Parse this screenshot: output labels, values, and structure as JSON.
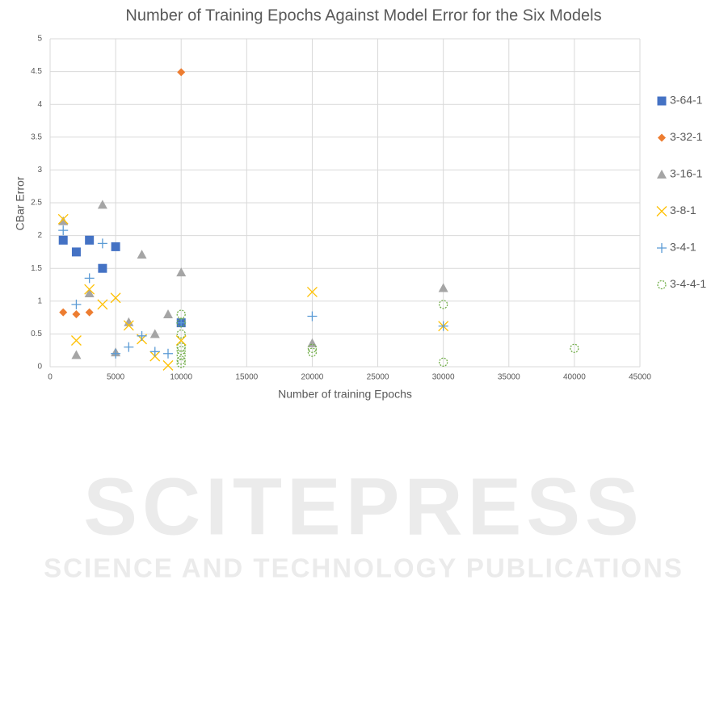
{
  "chart_data": {
    "type": "scatter",
    "title": "Number of Training Epochs Against Model Error for the Six Models",
    "x_label": "Number of training Epochs",
    "y_label": "CBar Error",
    "xlim": [
      0,
      45000
    ],
    "xticks": [
      0,
      5000,
      10000,
      15000,
      20000,
      25000,
      30000,
      35000,
      40000,
      45000
    ],
    "ylim": [
      0,
      5
    ],
    "yticks": [
      0,
      0.5,
      1,
      1.5,
      2,
      2.5,
      3,
      3.5,
      4,
      4.5,
      5
    ],
    "grid": true,
    "legend": "right",
    "series": [
      {
        "name": "3-64-1",
        "color": "#4472c4",
        "marker": "square",
        "x": [
          1000,
          2000,
          3000,
          4000,
          5000,
          10000
        ],
        "values": [
          1.93,
          1.75,
          1.93,
          1.5,
          1.83,
          0.67
        ]
      },
      {
        "name": "3-32-1",
        "color": "#ed7d31",
        "marker": "diamond",
        "x": [
          1000,
          2000,
          3000,
          10000
        ],
        "values": [
          0.83,
          0.8,
          0.83,
          4.49
        ]
      },
      {
        "name": "3-16-1",
        "color": "#a5a5a5",
        "marker": "triangle",
        "x": [
          1000,
          2000,
          3000,
          4000,
          5000,
          6000,
          7000,
          8000,
          9000,
          10000,
          20000,
          30000
        ],
        "values": [
          2.22,
          0.18,
          1.12,
          2.47,
          0.22,
          0.68,
          1.71,
          0.5,
          0.8,
          1.44,
          0.36,
          1.2
        ]
      },
      {
        "name": "3-8-1",
        "color": "#ffc000",
        "marker": "x",
        "x": [
          1000,
          2000,
          3000,
          4000,
          5000,
          6000,
          7000,
          8000,
          9000,
          10000,
          20000,
          30000
        ],
        "values": [
          2.25,
          0.4,
          1.18,
          0.95,
          1.05,
          0.63,
          0.42,
          0.16,
          0.02,
          0.4,
          1.14,
          0.62
        ]
      },
      {
        "name": "3-4-1",
        "color": "#5b9bd5",
        "marker": "plus",
        "x": [
          1000,
          2000,
          3000,
          4000,
          5000,
          6000,
          7000,
          8000,
          9000,
          10000,
          20000,
          30000
        ],
        "values": [
          2.08,
          0.95,
          1.35,
          1.88,
          0.2,
          0.3,
          0.47,
          0.23,
          0.2,
          0.67,
          0.77,
          0.62
        ]
      },
      {
        "name": "3-4-4-1",
        "color": "#70ad47",
        "marker": "circle",
        "x": [
          10000,
          10000,
          10000,
          10000,
          10000,
          10000,
          10000,
          10000,
          20000,
          20000,
          30000,
          30000,
          40000
        ],
        "values": [
          0.8,
          0.67,
          0.5,
          0.3,
          0.25,
          0.18,
          0.1,
          0.05,
          0.28,
          0.22,
          0.95,
          0.07,
          0.28
        ]
      }
    ],
    "watermark": [
      "SCITEPRESS",
      "SCIENCE AND TECHNOLOGY PUBLICATIONS"
    ]
  }
}
